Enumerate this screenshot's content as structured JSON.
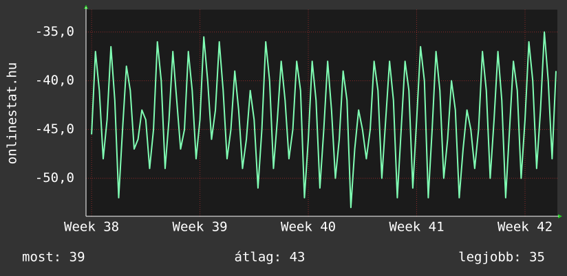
{
  "chart_data": {
    "type": "line",
    "y_label": "onlinestat.hu",
    "x": [
      0,
      0.25,
      0.5,
      0.75,
      1,
      1.25,
      1.5,
      1.75,
      2,
      2.25,
      2.5,
      2.75,
      3,
      3.25,
      3.5,
      3.75,
      4,
      4.25,
      4.5,
      4.75,
      5,
      5.25,
      5.5,
      5.75,
      6,
      6.25,
      6.5,
      6.75,
      7,
      7.25,
      7.5,
      7.75,
      8,
      8.25,
      8.5,
      8.75,
      9,
      9.25,
      9.5,
      9.75,
      10,
      10.25,
      10.5,
      10.75,
      11,
      11.25,
      11.5,
      11.75,
      12,
      12.25,
      12.5,
      12.75,
      13,
      13.25,
      13.5,
      13.75,
      14,
      14.25,
      14.5,
      14.75,
      15,
      15.25,
      15.5,
      15.75,
      16,
      16.25,
      16.5,
      16.75,
      17,
      17.25,
      17.5,
      17.75,
      18,
      18.25,
      18.5,
      18.75,
      19,
      19.25,
      19.5,
      19.75,
      20,
      20.25,
      20.5,
      20.75,
      21,
      21.25,
      21.5,
      21.75,
      22,
      22.25,
      22.5,
      22.75,
      23,
      23.25,
      23.5,
      23.75,
      24,
      24.25,
      24.5,
      24.75,
      25,
      25.25,
      25.5,
      25.75,
      26,
      26.25,
      26.5,
      26.75,
      27,
      27.25,
      27.5,
      27.75,
      28,
      28.25,
      28.5,
      28.75,
      29,
      29.25,
      29.5,
      29.75,
      30
    ],
    "series": [
      {
        "color": "#80ffb4",
        "values": [
          -45.5,
          -37,
          -41,
          -48,
          -44,
          -36.5,
          -42,
          -52,
          -45,
          -38.5,
          -41,
          -47,
          -46,
          -43,
          -44,
          -49,
          -45,
          -36,
          -40,
          -49,
          -44,
          -37,
          -42,
          -47,
          -45,
          -37,
          -41,
          -48,
          -44,
          -35.5,
          -40,
          -46,
          -43,
          -36,
          -41,
          -48,
          -45,
          -39,
          -43,
          -49,
          -46,
          -41,
          -44,
          -51,
          -45,
          -36,
          -40,
          -49,
          -44,
          -38,
          -42,
          -48,
          -45,
          -38,
          -41,
          -52,
          -46,
          -38,
          -42,
          -51,
          -45,
          -38,
          -43,
          -50,
          -46,
          -39,
          -42,
          -53,
          -47,
          -43,
          -45,
          -48,
          -45,
          -38,
          -41,
          -50,
          -44,
          -38,
          -42,
          -52,
          -45,
          -38,
          -41,
          -51,
          -44,
          -36.5,
          -40,
          -52,
          -45,
          -37,
          -41,
          -50,
          -46,
          -40,
          -43,
          -52,
          -47,
          -43,
          -45,
          -49,
          -45,
          -37,
          -41,
          -50,
          -44,
          -37,
          -42,
          -52,
          -45,
          -38,
          -41,
          -50,
          -44,
          -36,
          -40,
          -49,
          -43,
          -35,
          -40,
          -48,
          -39
        ]
      }
    ],
    "xlim": [
      -0.36,
      30.09
    ],
    "xticks": [
      {
        "value": 0,
        "label": "Week 38"
      },
      {
        "value": 7,
        "label": "Week 39"
      },
      {
        "value": 14,
        "label": "Week 40"
      },
      {
        "value": 21,
        "label": "Week 41"
      },
      {
        "value": 28,
        "label": "Week 42"
      }
    ],
    "ylim": [
      -53.9,
      -32.7
    ],
    "yticks": [
      {
        "value": -50,
        "label": "-50,0"
      },
      {
        "value": -45,
        "label": "-45,0"
      },
      {
        "value": -40,
        "label": "-40,0"
      },
      {
        "value": -35,
        "label": "-35,0"
      }
    ],
    "grid": true,
    "footer": [
      "most: 39",
      "átlag: 43",
      "legjobb: 35"
    ]
  }
}
